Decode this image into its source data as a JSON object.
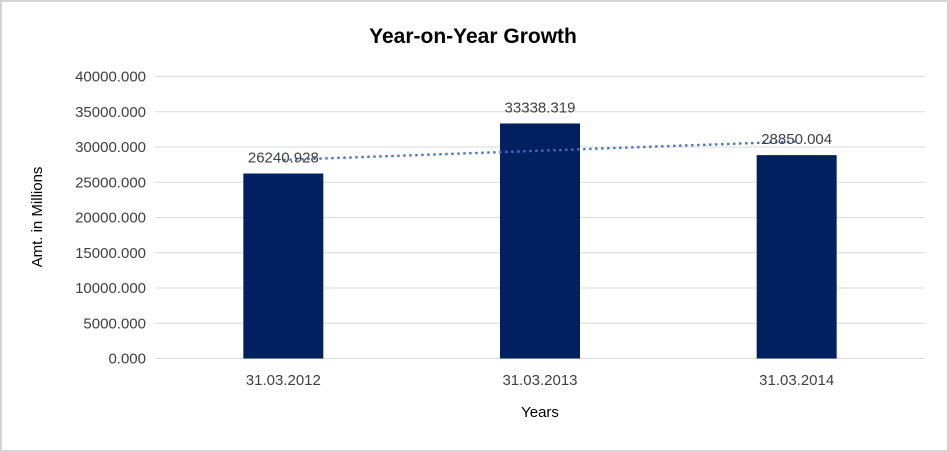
{
  "chart_data": {
    "type": "bar",
    "title": "Year-on-Year Growth",
    "xlabel": "Years",
    "ylabel": "Amt. in Millions",
    "categories": [
      "31.03.2012",
      "31.03.2013",
      "31.03.2014"
    ],
    "values": [
      26240.928,
      33338.319,
      28850.004
    ],
    "data_labels": [
      "26240.928",
      "33338.319",
      "28850.004"
    ],
    "ylim": [
      0,
      40000
    ],
    "ytick_step": 5000,
    "ytick_labels": [
      "0.000",
      "5000.000",
      "10000.000",
      "15000.000",
      "20000.000",
      "25000.000",
      "30000.000",
      "35000.000",
      "40000.000"
    ],
    "grid": true,
    "legend": false,
    "trendline": {
      "type": "linear",
      "style": "dotted"
    },
    "colors": {
      "bar": "#002060",
      "trendline": "#4472C4",
      "gridline": "#D9D9D9",
      "text": "#404040",
      "title": "#404040",
      "background": "#FFFFFF",
      "border": "#D4D4D4"
    }
  }
}
